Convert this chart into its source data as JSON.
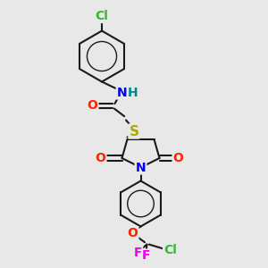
{
  "bg_color": "#e8e8e8",
  "bond_color": "#1a1a1a",
  "bond_lw": 1.5,
  "atoms": {
    "Cl_top": {
      "label": "Cl",
      "color": "#33bb33",
      "fontsize": 10
    },
    "N_amide": {
      "label": "N",
      "color": "#0000ee",
      "fontsize": 10
    },
    "H_amide": {
      "label": "H",
      "color": "#008888",
      "fontsize": 10
    },
    "O_amide": {
      "label": "O",
      "color": "#ff2200",
      "fontsize": 10
    },
    "S": {
      "label": "S",
      "color": "#aaaa00",
      "fontsize": 10
    },
    "O_left": {
      "label": "O",
      "color": "#ff2200",
      "fontsize": 10
    },
    "N_ring": {
      "label": "N",
      "color": "#0000ee",
      "fontsize": 10
    },
    "O_right": {
      "label": "O",
      "color": "#ff2200",
      "fontsize": 10
    },
    "O_ether": {
      "label": "O",
      "color": "#ff2200",
      "fontsize": 10
    },
    "F1": {
      "label": "F",
      "color": "#ee00ee",
      "fontsize": 10
    },
    "F2": {
      "label": "F",
      "color": "#ee00ee",
      "fontsize": 10
    },
    "Cl_bottom": {
      "label": "Cl",
      "color": "#33bb33",
      "fontsize": 10
    }
  },
  "layout": {
    "figsize": [
      3.0,
      3.0
    ],
    "dpi": 100,
    "xlim": [
      0,
      1
    ],
    "ylim": [
      0,
      1
    ]
  }
}
